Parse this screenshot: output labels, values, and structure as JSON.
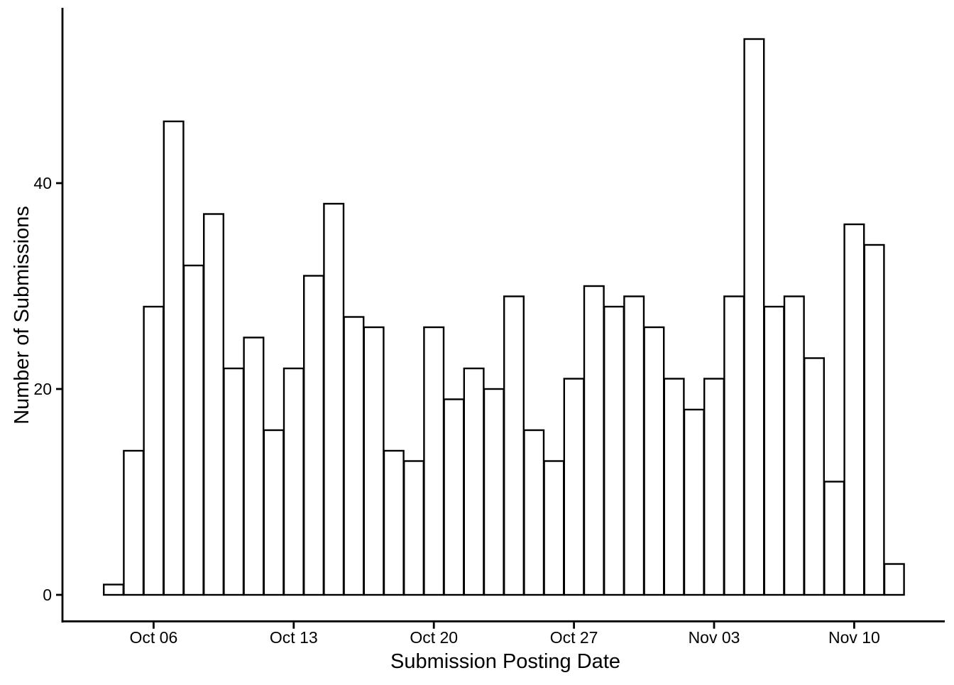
{
  "figure": {
    "background": "#ffffff",
    "bar_fill": "#ffffff",
    "bar_stroke": "#000000",
    "axis_color": "#000000",
    "text_color": "#000000"
  },
  "chart_data": {
    "type": "bar",
    "title": "",
    "xlabel": "Submission Posting Date",
    "ylabel": "Number of Submissions",
    "x": [
      "Oct 04",
      "Oct 05",
      "Oct 06",
      "Oct 07",
      "Oct 08",
      "Oct 09",
      "Oct 10",
      "Oct 11",
      "Oct 12",
      "Oct 13",
      "Oct 14",
      "Oct 15",
      "Oct 16",
      "Oct 17",
      "Oct 18",
      "Oct 19",
      "Oct 20",
      "Oct 21",
      "Oct 22",
      "Oct 23",
      "Oct 24",
      "Oct 25",
      "Oct 26",
      "Oct 27",
      "Oct 28",
      "Oct 29",
      "Oct 30",
      "Oct 31",
      "Nov 01",
      "Nov 02",
      "Nov 03",
      "Nov 04",
      "Nov 05",
      "Nov 06",
      "Nov 07",
      "Nov 08",
      "Nov 09",
      "Nov 10",
      "Nov 11",
      "Nov 12"
    ],
    "values": [
      1,
      14,
      28,
      46,
      32,
      37,
      22,
      25,
      16,
      22,
      31,
      38,
      27,
      26,
      14,
      13,
      26,
      19,
      22,
      20,
      29,
      16,
      13,
      21,
      30,
      28,
      29,
      26,
      21,
      18,
      21,
      29,
      54,
      28,
      29,
      23,
      11,
      36,
      34,
      3
    ],
    "y_ticks": [
      0,
      20,
      40
    ],
    "x_tick_labels": [
      "Oct 06",
      "Oct 13",
      "Oct 20",
      "Oct 27",
      "Nov 03",
      "Nov 10"
    ],
    "x_tick_indices": [
      2,
      9,
      16,
      23,
      30,
      37
    ],
    "ylim": [
      0,
      57
    ],
    "grid": false,
    "legend_position": "none"
  }
}
